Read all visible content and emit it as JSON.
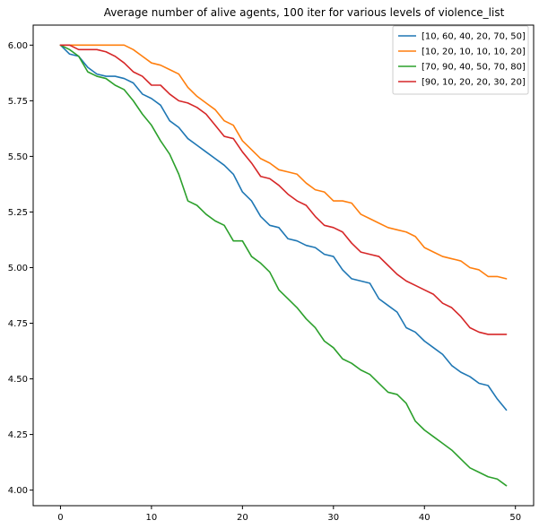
{
  "chart_data": {
    "type": "line",
    "title": "Average number of alive agents, 100 iter for various levels of violence_list",
    "xlabel": "",
    "ylabel": "",
    "xlim": [
      -3,
      52
    ],
    "ylim": [
      3.93,
      6.09
    ],
    "xticks": [
      0,
      10,
      20,
      30,
      40,
      50
    ],
    "yticks": [
      4.0,
      4.25,
      4.5,
      4.75,
      5.0,
      5.25,
      5.5,
      5.75,
      6.0
    ],
    "ytick_labels": [
      "4.00",
      "4.25",
      "4.50",
      "4.75",
      "5.00",
      "5.25",
      "5.50",
      "5.75",
      "6.00"
    ],
    "grid": false,
    "legend_position": "top-right",
    "x": [
      0,
      1,
      2,
      3,
      4,
      5,
      6,
      7,
      8,
      9,
      10,
      11,
      12,
      13,
      14,
      15,
      16,
      17,
      18,
      19,
      20,
      21,
      22,
      23,
      24,
      25,
      26,
      27,
      28,
      29,
      30,
      31,
      32,
      33,
      34,
      35,
      36,
      37,
      38,
      39,
      40,
      41,
      42,
      43,
      44,
      45,
      46,
      47,
      48,
      49
    ],
    "series": [
      {
        "name": "[10, 60, 40, 20, 70, 50]",
        "color": "#1f77b4",
        "values": [
          6.0,
          5.96,
          5.95,
          5.9,
          5.87,
          5.86,
          5.86,
          5.85,
          5.83,
          5.78,
          5.76,
          5.73,
          5.66,
          5.63,
          5.58,
          5.55,
          5.52,
          5.49,
          5.46,
          5.42,
          5.34,
          5.3,
          5.23,
          5.19,
          5.18,
          5.13,
          5.12,
          5.1,
          5.09,
          5.06,
          5.05,
          4.99,
          4.95,
          4.94,
          4.93,
          4.86,
          4.83,
          4.8,
          4.73,
          4.71,
          4.67,
          4.64,
          4.61,
          4.56,
          4.53,
          4.51,
          4.48,
          4.47,
          4.41,
          4.36
        ]
      },
      {
        "name": "[10, 20, 10, 10, 10, 20]",
        "color": "#ff7f0e",
        "values": [
          6.0,
          6.0,
          6.0,
          6.0,
          6.0,
          6.0,
          6.0,
          6.0,
          5.98,
          5.95,
          5.92,
          5.91,
          5.89,
          5.87,
          5.81,
          5.77,
          5.74,
          5.71,
          5.66,
          5.64,
          5.57,
          5.53,
          5.49,
          5.47,
          5.44,
          5.43,
          5.42,
          5.38,
          5.35,
          5.34,
          5.3,
          5.3,
          5.29,
          5.24,
          5.22,
          5.2,
          5.18,
          5.17,
          5.16,
          5.14,
          5.09,
          5.07,
          5.05,
          5.04,
          5.03,
          5.0,
          4.99,
          4.96,
          4.96,
          4.95
        ]
      },
      {
        "name": "[70, 90, 40, 50, 70, 80]",
        "color": "#2ca02c",
        "values": [
          6.0,
          5.98,
          5.95,
          5.88,
          5.86,
          5.85,
          5.82,
          5.8,
          5.75,
          5.69,
          5.64,
          5.57,
          5.51,
          5.42,
          5.3,
          5.28,
          5.24,
          5.21,
          5.19,
          5.12,
          5.12,
          5.05,
          5.02,
          4.98,
          4.9,
          4.86,
          4.82,
          4.77,
          4.73,
          4.67,
          4.64,
          4.59,
          4.57,
          4.54,
          4.52,
          4.48,
          4.44,
          4.43,
          4.39,
          4.31,
          4.27,
          4.24,
          4.21,
          4.18,
          4.14,
          4.1,
          4.08,
          4.06,
          4.05,
          4.02
        ]
      },
      {
        "name": "[90, 10, 20, 20, 30, 20]",
        "color": "#d62728",
        "values": [
          6.0,
          6.0,
          5.98,
          5.98,
          5.98,
          5.97,
          5.95,
          5.92,
          5.88,
          5.86,
          5.82,
          5.82,
          5.78,
          5.75,
          5.74,
          5.72,
          5.69,
          5.64,
          5.59,
          5.58,
          5.52,
          5.47,
          5.41,
          5.4,
          5.37,
          5.33,
          5.3,
          5.28,
          5.23,
          5.19,
          5.18,
          5.16,
          5.11,
          5.07,
          5.06,
          5.05,
          5.01,
          4.97,
          4.94,
          4.92,
          4.9,
          4.88,
          4.84,
          4.82,
          4.78,
          4.73,
          4.71,
          4.7,
          4.7,
          4.7
        ]
      }
    ]
  }
}
